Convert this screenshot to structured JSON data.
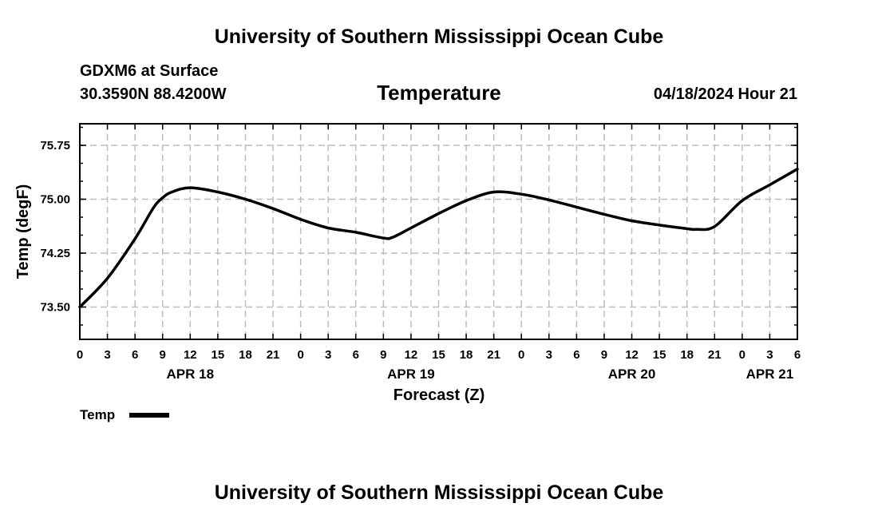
{
  "header": {
    "title": "University of Southern Mississippi Ocean Cube",
    "station": "GDXM6 at Surface",
    "location": "30.3590N  88.4200W",
    "datetime": "04/18/2024 Hour 21"
  },
  "footer": {
    "title": "University of Southern Mississippi Ocean Cube"
  },
  "colors": {
    "line": "#000000",
    "grid": "#bdbdbd",
    "background": "#ffffff"
  },
  "chart_data": {
    "type": "line",
    "title": "Temperature",
    "xlabel": "Forecast (Z)",
    "ylabel": "Temp (degF)",
    "ylim": [
      73.05,
      76.05
    ],
    "xlim": [
      0,
      78
    ],
    "grid": true,
    "x_tick_positions": [
      0,
      3,
      6,
      9,
      12,
      15,
      18,
      21,
      24,
      27,
      30,
      33,
      36,
      39,
      42,
      45,
      48,
      51,
      54,
      57,
      60,
      63,
      66,
      69,
      72,
      75,
      78
    ],
    "x_tick_labels": [
      "0",
      "3",
      "6",
      "9",
      "12",
      "15",
      "18",
      "21",
      "0",
      "3",
      "6",
      "9",
      "12",
      "15",
      "18",
      "21",
      "0",
      "3",
      "6",
      "9",
      "12",
      "15",
      "18",
      "21",
      "0",
      "3",
      "6"
    ],
    "y_ticks": [
      73.5,
      74.25,
      75.0,
      75.75
    ],
    "y_tick_labels": [
      "73.50",
      "74.25",
      "75.00",
      "75.75"
    ],
    "date_labels": [
      {
        "x": 12,
        "label": "APR 18"
      },
      {
        "x": 36,
        "label": "APR 19"
      },
      {
        "x": 60,
        "label": "APR 20"
      },
      {
        "x": 75,
        "label": "APR 21"
      }
    ],
    "legend": [
      {
        "name": "Temp",
        "placement": "bottom-left"
      }
    ],
    "series": [
      {
        "name": "Temp",
        "x": [
          0,
          3,
          6,
          8,
          9,
          10,
          12,
          15,
          18,
          21,
          24,
          27,
          30,
          33,
          34,
          36,
          39,
          42,
          45,
          48,
          51,
          54,
          57,
          60,
          63,
          66,
          67,
          69,
          72,
          75,
          78
        ],
        "values": [
          73.5,
          73.9,
          74.45,
          74.88,
          75.02,
          75.1,
          75.16,
          75.1,
          75.0,
          74.87,
          74.72,
          74.6,
          74.54,
          74.46,
          74.47,
          74.6,
          74.8,
          74.98,
          75.1,
          75.07,
          74.99,
          74.89,
          74.79,
          74.7,
          74.64,
          74.59,
          74.58,
          74.62,
          74.98,
          75.2,
          75.42
        ]
      }
    ]
  }
}
